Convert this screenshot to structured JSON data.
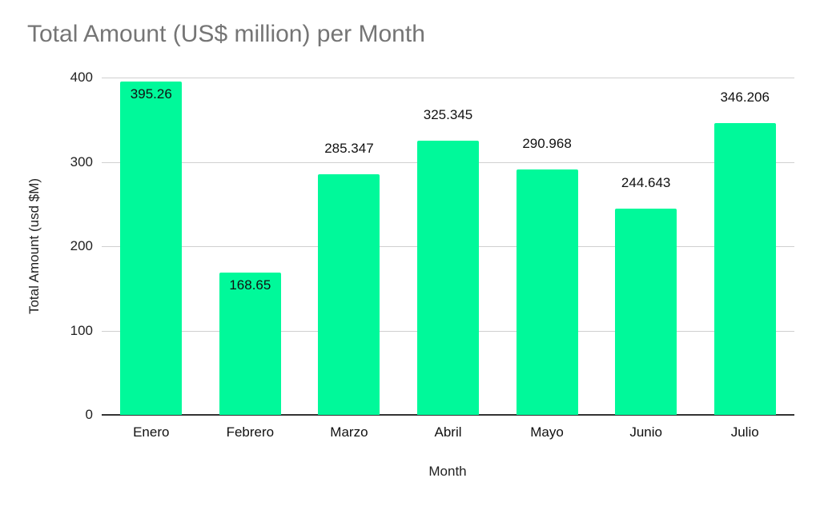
{
  "chart_data": {
    "type": "bar",
    "title": "Total Amount (US$ million) per Month",
    "xlabel": "Month",
    "ylabel": "Total Amount (usd $M)",
    "categories": [
      "Enero",
      "Febrero",
      "Marzo",
      "Abril",
      "Mayo",
      "Junio",
      "Julio"
    ],
    "values": [
      395.26,
      168.65,
      285.347,
      325.345,
      290.968,
      244.643,
      346.206
    ],
    "value_labels": [
      "395.26",
      "168.65",
      "285.347",
      "325.345",
      "290.968",
      "244.643",
      "346.206"
    ],
    "ylim": [
      0,
      400
    ],
    "yticks": [
      "0",
      "100",
      "200",
      "300",
      "400"
    ],
    "grid": true,
    "legend": null,
    "bar_color": "#00f99a"
  }
}
